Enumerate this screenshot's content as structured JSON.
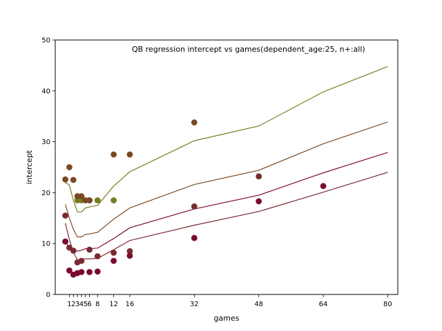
{
  "chart_data": {
    "type": "scatter",
    "title": "QB regression intercept vs games(dependent_age:25, n+:all)",
    "xlabel": "games",
    "ylabel": "intercept",
    "xlim": [
      -2.5,
      82.5
    ],
    "ylim": [
      0,
      50
    ],
    "xticks": [
      1,
      2,
      3,
      4,
      5,
      6,
      8,
      12,
      16,
      32,
      48,
      64,
      80
    ],
    "xtick_labels": [
      "1",
      "2",
      "3",
      "4",
      "5",
      "6",
      "8",
      "12",
      "16",
      "32",
      "48",
      "64",
      "80"
    ],
    "yticks": [
      0,
      10,
      20,
      30,
      40,
      50
    ],
    "grid": false,
    "legend": "none",
    "series": [
      {
        "color": "#7a7a22",
        "points": [
          [
            3,
            18.5
          ],
          [
            4,
            18.5
          ],
          [
            5,
            18.5
          ],
          [
            6,
            18.5
          ],
          [
            8,
            18.5
          ],
          [
            12,
            18.5
          ]
        ],
        "line": [
          [
            0,
            22.0
          ],
          [
            1,
            21.5
          ],
          [
            2,
            18.5
          ],
          [
            3,
            16.2
          ],
          [
            4,
            16.2
          ],
          [
            5,
            17.0
          ],
          [
            6,
            17.2
          ],
          [
            8,
            17.5
          ],
          [
            12,
            21.3
          ],
          [
            16,
            24.1
          ],
          [
            32,
            30.2
          ],
          [
            48,
            33.1
          ],
          [
            64,
            39.8
          ],
          [
            80,
            44.8
          ]
        ]
      },
      {
        "color": "#7a4a22",
        "points": [
          [
            0,
            22.6
          ],
          [
            1,
            25.0
          ],
          [
            2,
            22.5
          ],
          [
            3,
            19.3
          ],
          [
            4,
            19.3
          ],
          [
            5,
            18.5
          ],
          [
            6,
            18.5
          ],
          [
            12,
            27.5
          ],
          [
            16,
            27.5
          ],
          [
            32,
            33.8
          ]
        ],
        "line": [
          [
            0,
            17.7
          ],
          [
            1,
            15.0
          ],
          [
            2,
            12.8
          ],
          [
            3,
            11.3
          ],
          [
            4,
            11.3
          ],
          [
            5,
            11.8
          ],
          [
            6,
            11.9
          ],
          [
            8,
            12.2
          ],
          [
            12,
            14.8
          ],
          [
            16,
            17.0
          ],
          [
            32,
            21.6
          ],
          [
            48,
            24.4
          ],
          [
            64,
            29.6
          ],
          [
            80,
            33.9
          ]
        ]
      },
      {
        "color": "#7a2a32",
        "points": [
          [
            0,
            15.5
          ],
          [
            1,
            9.2
          ],
          [
            2,
            8.6
          ],
          [
            3,
            6.3
          ],
          [
            4,
            6.6
          ],
          [
            6,
            8.8
          ],
          [
            8,
            7.5
          ],
          [
            12,
            8.2
          ],
          [
            16,
            8.5
          ],
          [
            32,
            17.3
          ],
          [
            48,
            23.2
          ]
        ],
        "line": [
          [
            0,
            14.0
          ],
          [
            1,
            10.8
          ],
          [
            2,
            8.3
          ],
          [
            3,
            6.8
          ],
          [
            4,
            6.8
          ],
          [
            5,
            7.0
          ],
          [
            6,
            7.0
          ],
          [
            8,
            7.1
          ],
          [
            12,
            8.8
          ],
          [
            16,
            10.6
          ],
          [
            32,
            13.6
          ],
          [
            48,
            16.3
          ],
          [
            64,
            20.1
          ],
          [
            80,
            24.0
          ]
        ]
      },
      {
        "color": "#7a0a32",
        "points": [
          [
            0,
            10.4
          ],
          [
            1,
            4.7
          ],
          [
            2,
            3.9
          ],
          [
            3,
            4.2
          ],
          [
            4,
            4.4
          ],
          [
            6,
            4.4
          ],
          [
            8,
            4.5
          ],
          [
            12,
            6.6
          ],
          [
            16,
            7.6
          ],
          [
            32,
            11.1
          ],
          [
            48,
            18.3
          ],
          [
            64,
            21.3
          ]
        ],
        "line": [
          [
            0,
            10.6
          ],
          [
            1,
            8.9
          ],
          [
            2,
            8.7
          ],
          [
            3,
            8.5
          ],
          [
            4,
            8.7
          ],
          [
            5,
            9.0
          ],
          [
            6,
            9.0
          ],
          [
            8,
            9.1
          ],
          [
            12,
            11.0
          ],
          [
            16,
            13.1
          ],
          [
            32,
            16.8
          ],
          [
            48,
            19.5
          ],
          [
            64,
            23.9
          ],
          [
            80,
            27.9
          ]
        ]
      }
    ]
  }
}
